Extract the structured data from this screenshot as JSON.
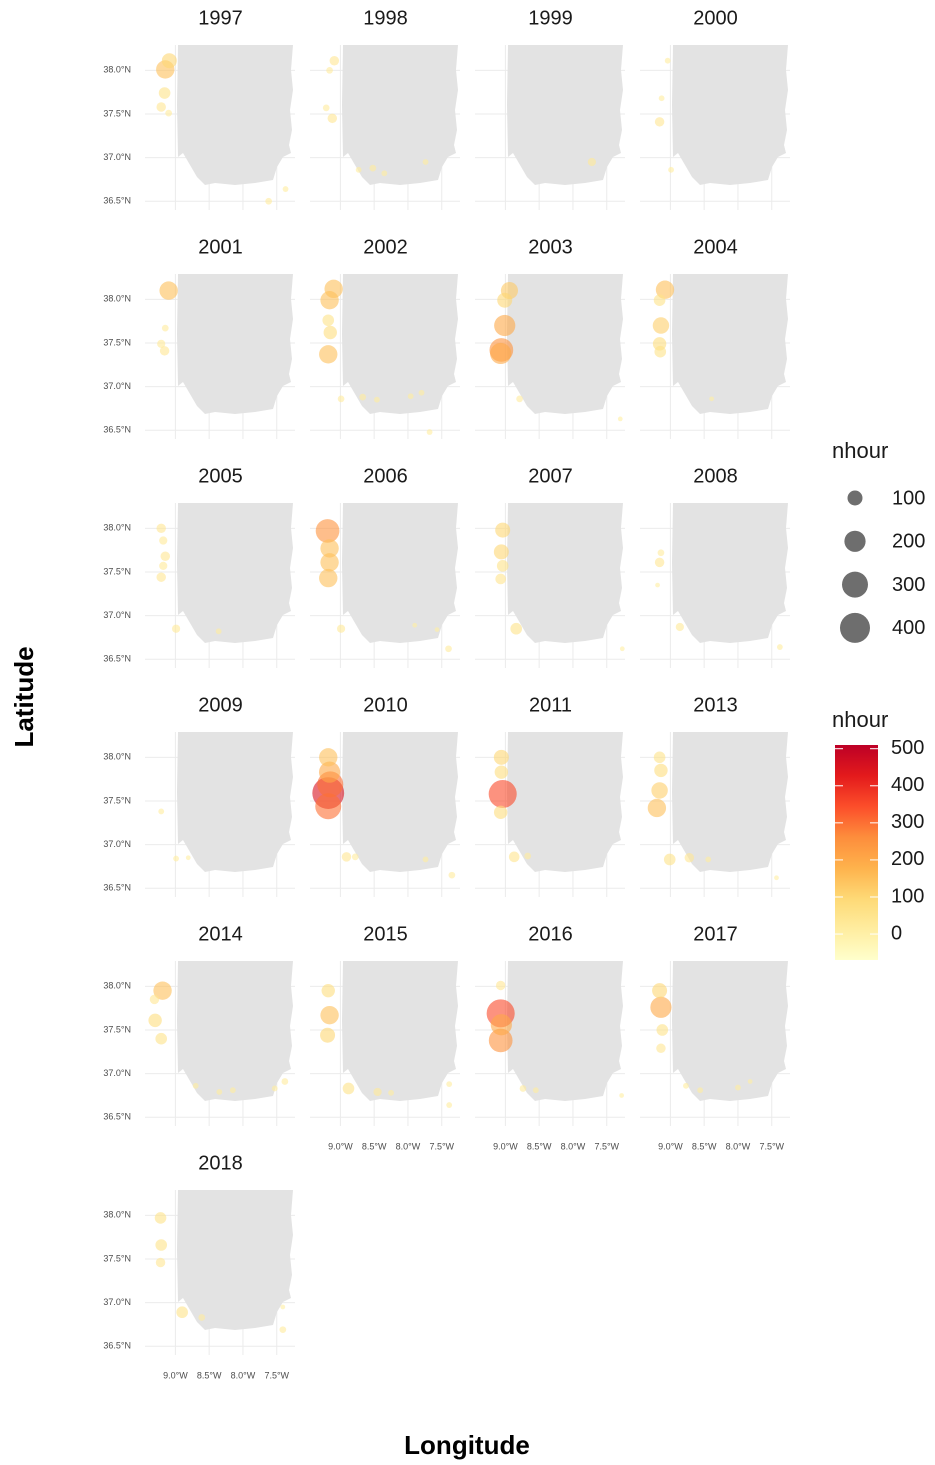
{
  "chart_data": {
    "type": "scatter",
    "x_label": "Longitude",
    "y_label": "Latitude",
    "xlim": [
      -9.45,
      -7.23
    ],
    "ylim": [
      36.4,
      38.29
    ],
    "xticks": [
      {
        "value": -9,
        "label": "9.0°W"
      },
      {
        "value": -8.5,
        "label": "8.5°W"
      },
      {
        "value": -8,
        "label": "8.0°W"
      },
      {
        "value": -7.5,
        "label": "7.5°W"
      }
    ],
    "yticks": [
      {
        "value": 36.5,
        "label": "36.5°N"
      },
      {
        "value": 37,
        "label": "37.0°N"
      },
      {
        "value": 37.5,
        "label": "37.5°N"
      },
      {
        "value": 38,
        "label": "38.0°N"
      }
    ],
    "grid": true,
    "opacity": 0.6,
    "size_legend": {
      "title": "nhour",
      "values": [
        100,
        200,
        300,
        400
      ],
      "color": "#555555"
    },
    "color_legend": {
      "title": "nhour",
      "lim": [
        -70,
        510
      ],
      "ticks": [
        0,
        100,
        200,
        300,
        400,
        500
      ],
      "colors": [
        "#ffffcc",
        "#ffeda0",
        "#fed976",
        "#feb24c",
        "#fd8d3c",
        "#fc4e2a",
        "#e31a1c",
        "#bd0026"
      ]
    },
    "facets": [
      {
        "title": "1997",
        "lon": [
          -9.09,
          -9.15,
          -9.16,
          -9.21,
          -9.1,
          -7.62,
          -7.37
        ],
        "lat": [
          38.11,
          38.01,
          37.74,
          37.58,
          37.51,
          36.5,
          36.64
        ],
        "nhour": [
          100,
          150,
          60,
          40,
          20,
          20,
          15
        ]
      },
      {
        "title": "1998",
        "lon": [
          -9.09,
          -9.16,
          -9.21,
          -9.12,
          -8.73,
          -8.52,
          -8.35,
          -7.74
        ],
        "lat": [
          38.11,
          38.0,
          37.57,
          37.45,
          36.86,
          36.88,
          36.82,
          36.95
        ],
        "nhour": [
          40,
          20,
          20,
          40,
          15,
          20,
          15,
          15
        ]
      },
      {
        "title": "1999",
        "lon": [
          -7.72
        ],
        "lat": [
          36.95
        ],
        "nhour": [
          30
        ]
      },
      {
        "title": "2000",
        "lon": [
          -9.04,
          -9.13,
          -9.16,
          -8.99
        ],
        "lat": [
          38.11,
          37.68,
          37.41,
          36.86
        ],
        "nhour": [
          15,
          15,
          40,
          15
        ]
      },
      {
        "title": "2001",
        "lon": [
          -9.1,
          -9.15,
          -9.21,
          -9.16
        ],
        "lat": [
          38.1,
          37.67,
          37.49,
          37.41
        ],
        "nhour": [
          150,
          20,
          30,
          40
        ]
      },
      {
        "title": "2002",
        "lon": [
          -9.1,
          -9.16,
          -9.18,
          -9.15,
          -9.18,
          -8.99,
          -8.67,
          -8.46,
          -7.96,
          -7.8,
          -7.68
        ],
        "lat": [
          38.12,
          37.99,
          37.76,
          37.62,
          37.37,
          36.86,
          36.88,
          36.85,
          36.89,
          36.93,
          36.48
        ],
        "nhour": [
          150,
          150,
          60,
          80,
          150,
          20,
          20,
          15,
          15,
          15,
          15
        ]
      },
      {
        "title": "2003",
        "lon": [
          -8.94,
          -9.01,
          -9.01,
          -9.06,
          -9.07,
          -8.79,
          -7.3
        ],
        "lat": [
          38.1,
          37.99,
          37.7,
          37.42,
          37.38,
          36.86,
          36.63
        ],
        "nhour": [
          130,
          100,
          200,
          250,
          200,
          20,
          10
        ]
      },
      {
        "title": "2004",
        "lon": [
          -9.08,
          -9.16,
          -9.14,
          -9.16,
          -9.15,
          -8.39
        ],
        "lat": [
          38.11,
          37.99,
          37.7,
          37.49,
          37.4,
          36.86
        ],
        "nhour": [
          150,
          60,
          120,
          80,
          60,
          10
        ]
      },
      {
        "title": "2005",
        "lon": [
          -9.21,
          -9.18,
          -9.15,
          -9.18,
          -9.21,
          -8.99,
          -8.36
        ],
        "lat": [
          38.0,
          37.86,
          37.68,
          37.57,
          37.44,
          36.85,
          36.82
        ],
        "nhour": [
          40,
          30,
          40,
          30,
          40,
          30,
          15
        ]
      },
      {
        "title": "2006",
        "lon": [
          -9.19,
          -9.16,
          -9.16,
          -9.18,
          -8.99,
          -7.9,
          -7.57,
          -7.4
        ],
        "lat": [
          37.97,
          37.77,
          37.61,
          37.43,
          36.85,
          36.89,
          36.84,
          36.62
        ],
        "nhour": [
          250,
          150,
          150,
          150,
          30,
          10,
          10,
          20
        ]
      },
      {
        "title": "2007",
        "lon": [
          -9.04,
          -9.06,
          -9.04,
          -9.07,
          -8.84,
          -7.27
        ],
        "lat": [
          37.98,
          37.73,
          37.57,
          37.42,
          36.85,
          36.62
        ],
        "nhour": [
          100,
          100,
          60,
          50,
          60,
          10
        ]
      },
      {
        "title": "2008",
        "lon": [
          -9.14,
          -9.16,
          -9.19,
          -8.86,
          -7.38
        ],
        "lat": [
          37.72,
          37.61,
          37.35,
          36.87,
          36.64
        ],
        "nhour": [
          20,
          40,
          10,
          30,
          15
        ]
      },
      {
        "title": "2009",
        "lon": [
          -9.21,
          -8.99,
          -8.81
        ],
        "lat": [
          37.38,
          36.84,
          36.85
        ],
        "nhour": [
          15,
          15,
          10
        ]
      },
      {
        "title": "2010",
        "lon": [
          -9.18,
          -9.16,
          -9.15,
          -9.18,
          -9.18,
          -8.91,
          -8.78,
          -7.74,
          -7.35
        ],
        "lat": [
          38.0,
          37.83,
          37.69,
          37.59,
          37.44,
          36.86,
          36.86,
          36.83,
          36.65
        ],
        "nhour": [
          150,
          200,
          300,
          450,
          300,
          40,
          20,
          15,
          20
        ]
      },
      {
        "title": "2011",
        "lon": [
          -9.06,
          -9.06,
          -9.04,
          -9.07,
          -8.87,
          -8.67
        ],
        "lat": [
          38.0,
          37.83,
          37.58,
          37.37,
          36.86,
          36.87
        ],
        "nhour": [
          100,
          80,
          350,
          80,
          50,
          20
        ]
      },
      {
        "title": "2013",
        "lon": [
          -9.16,
          -9.14,
          -9.16,
          -9.2,
          -9.01,
          -8.72,
          -8.44,
          -7.43
        ],
        "lat": [
          38.0,
          37.85,
          37.62,
          37.42,
          36.83,
          36.85,
          36.83,
          36.62
        ],
        "nhour": [
          60,
          80,
          120,
          150,
          60,
          40,
          15,
          10
        ]
      },
      {
        "title": "2014",
        "lon": [
          -9.19,
          -9.31,
          -9.3,
          -9.21,
          -8.7,
          -8.35,
          -8.15,
          -7.53,
          -7.38
        ],
        "lat": [
          37.95,
          37.85,
          37.61,
          37.4,
          36.86,
          36.79,
          36.81,
          36.83,
          36.91
        ],
        "nhour": [
          150,
          40,
          80,
          60,
          15,
          15,
          15,
          15,
          20
        ]
      },
      {
        "title": "2015",
        "lon": [
          -9.18,
          -9.16,
          -9.19,
          -8.88,
          -8.45,
          -8.25,
          -7.39,
          -7.39
        ],
        "lat": [
          37.95,
          37.67,
          37.44,
          36.83,
          36.79,
          36.78,
          36.88,
          36.64
        ],
        "nhour": [
          80,
          150,
          100,
          60,
          30,
          15,
          15,
          15
        ]
      },
      {
        "title": "2016",
        "lon": [
          -9.07,
          -9.07,
          -9.06,
          -9.07,
          -8.74,
          -8.55,
          -7.28
        ],
        "lat": [
          38.01,
          37.69,
          37.56,
          37.38,
          36.83,
          36.81,
          36.75
        ],
        "nhour": [
          40,
          350,
          200,
          250,
          20,
          15,
          10
        ]
      },
      {
        "title": "2017",
        "lon": [
          -9.16,
          -9.14,
          -9.12,
          -9.14,
          -8.77,
          -8.56,
          -8.0,
          -7.82
        ],
        "lat": [
          37.95,
          37.76,
          37.5,
          37.29,
          36.86,
          36.81,
          36.84,
          36.91
        ],
        "nhour": [
          100,
          200,
          60,
          40,
          15,
          15,
          15,
          10
        ]
      },
      {
        "title": "2018",
        "lon": [
          -9.22,
          -9.21,
          -9.22,
          -8.9,
          -8.61,
          -7.41,
          -7.41
        ],
        "lat": [
          37.97,
          37.66,
          37.46,
          36.89,
          36.83,
          36.95,
          36.69
        ],
        "nhour": [
          60,
          60,
          40,
          60,
          20,
          10,
          20
        ]
      }
    ]
  }
}
